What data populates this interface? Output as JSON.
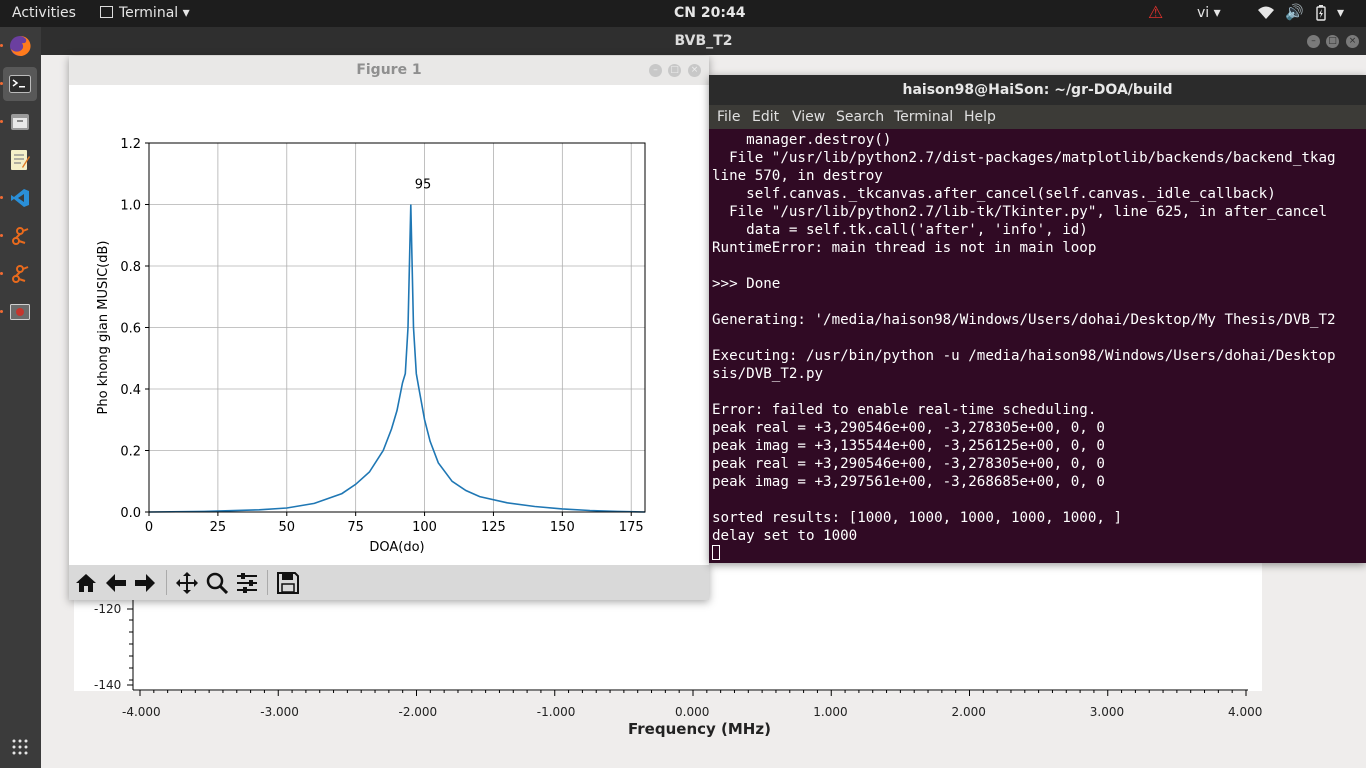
{
  "topbar": {
    "activities": "Activities",
    "app_name": "Terminal",
    "clock": "CN 20:44",
    "input_method": "vi"
  },
  "background_window": {
    "title": "BVB_T2",
    "y_ticks": [
      "-120",
      "-140"
    ],
    "x_ticks": [
      "-4.000",
      "-3.000",
      "-2.000",
      "-1.000",
      "0.000",
      "1.000",
      "2.000",
      "3.000",
      "4.000"
    ],
    "xlabel": "Frequency (MHz)"
  },
  "figure": {
    "title": "Figure 1"
  },
  "chart_data": {
    "type": "line",
    "title": "",
    "xlabel": "DOA(do)",
    "ylabel": "Pho khong gian MUSIC(dB)",
    "xlim": [
      0,
      180
    ],
    "ylim": [
      0,
      1.2
    ],
    "x_ticks": [
      0,
      25,
      50,
      75,
      100,
      125,
      150,
      175
    ],
    "y_ticks": [
      "0.0",
      "0.2",
      "0.4",
      "0.6",
      "0.8",
      "1.0",
      "1.2"
    ],
    "grid": true,
    "series_color": "#1f77b4",
    "x": [
      0,
      20,
      40,
      50,
      60,
      70,
      75,
      80,
      85,
      88,
      90,
      92,
      93,
      94,
      95,
      96,
      97,
      98,
      100,
      102,
      105,
      110,
      115,
      120,
      130,
      140,
      150,
      160,
      170,
      180
    ],
    "y": [
      0.0,
      0.002,
      0.007,
      0.013,
      0.028,
      0.06,
      0.09,
      0.13,
      0.2,
      0.27,
      0.33,
      0.42,
      0.45,
      0.6,
      1.0,
      0.6,
      0.45,
      0.4,
      0.3,
      0.23,
      0.16,
      0.1,
      0.07,
      0.05,
      0.03,
      0.018,
      0.01,
      0.005,
      0.002,
      0.0
    ],
    "annotations": [
      {
        "text": "95",
        "x": 95,
        "y": 1.0
      }
    ]
  },
  "terminal": {
    "title": "haison98@HaiSon: ~/gr-DOA/build",
    "menu": [
      "File",
      "Edit",
      "View",
      "Search",
      "Terminal",
      "Help"
    ],
    "lines": [
      "    manager.destroy()",
      "  File \"/usr/lib/python2.7/dist-packages/matplotlib/backends/backend_tkag",
      "line 570, in destroy",
      "    self.canvas._tkcanvas.after_cancel(self.canvas._idle_callback)",
      "  File \"/usr/lib/python2.7/lib-tk/Tkinter.py\", line 625, in after_cancel",
      "    data = self.tk.call('after', 'info', id)",
      "RuntimeError: main thread is not in main loop",
      "",
      ">>> Done",
      "",
      "Generating: '/media/haison98/Windows/Users/dohai/Desktop/My Thesis/DVB_T2",
      "",
      "Executing: /usr/bin/python -u /media/haison98/Windows/Users/dohai/Desktop",
      "sis/DVB_T2.py",
      "",
      "Error: failed to enable real-time scheduling.",
      "peak real = +3,290546e+00, -3,278305e+00, 0, 0",
      "peak imag = +3,135544e+00, -3,256125e+00, 0, 0",
      "peak real = +3,290546e+00, -3,278305e+00, 0, 0",
      "peak imag = +3,297561e+00, -3,268685e+00, 0, 0",
      "",
      "sorted results: [1000, 1000, 1000, 1000, 1000, ]",
      "delay set to 1000"
    ]
  }
}
